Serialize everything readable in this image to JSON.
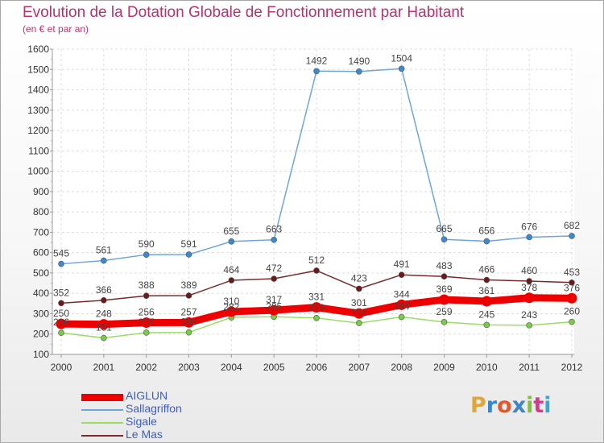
{
  "title": "Evolution de la Dotation Globale de Fonctionnement par Habitant",
  "subtitle": "(en € et par an)",
  "logo": {
    "text": "Proxiti",
    "colors": [
      "#e1a63a",
      "#3a86c8",
      "#e05a2b",
      "#3a86c8",
      "#7ec13a",
      "#d83a8a",
      "#3aa8c8"
    ]
  },
  "chart_data": {
    "type": "line",
    "title": "Evolution de la Dotation Globale de Fonctionnement par Habitant",
    "subtitle": "(en € et par an)",
    "x": [
      "2000",
      "2001",
      "2002",
      "2003",
      "2004",
      "2005",
      "2006",
      "2007",
      "2008",
      "2009",
      "2010",
      "2011",
      "2012"
    ],
    "ylim": [
      100,
      1600
    ],
    "yticks": [
      100,
      200,
      300,
      400,
      500,
      600,
      700,
      800,
      900,
      1000,
      1100,
      1200,
      1300,
      1400,
      1500,
      1600
    ],
    "grid": true,
    "legend_position": "bottom-left",
    "series": [
      {
        "name": "Sigale",
        "color": "#99dd66",
        "marker": "#77cc44",
        "values": [
          206,
          181,
          207,
          208,
          282,
          285,
          279,
          254,
          284,
          259,
          245,
          243,
          260
        ]
      },
      {
        "name": "Le Mas",
        "color": "#7a2a2a",
        "marker": "#6a1a1a",
        "values": [
          352,
          366,
          388,
          389,
          464,
          472,
          512,
          423,
          491,
          483,
          466,
          460,
          453
        ]
      },
      {
        "name": "Sallagriffon",
        "color": "#6ea6d8",
        "marker": "#3a8ad0",
        "values": [
          545,
          561,
          590,
          591,
          655,
          663,
          1492,
          1490,
          1504,
          665,
          656,
          676,
          682
        ]
      },
      {
        "name": "AIGLUN",
        "color": "#ee0000",
        "marker": "#ee0000",
        "values": [
          250,
          248,
          256,
          257,
          310,
          317,
          331,
          301,
          344,
          369,
          361,
          378,
          376
        ]
      }
    ],
    "legend": [
      {
        "name": "AIGLUN",
        "color": "#ee0000"
      },
      {
        "name": "Sallagriffon",
        "color": "#6ea6d8"
      },
      {
        "name": "Sigale",
        "color": "#99dd66"
      },
      {
        "name": "Le Mas",
        "color": "#7a2a2a"
      }
    ]
  }
}
